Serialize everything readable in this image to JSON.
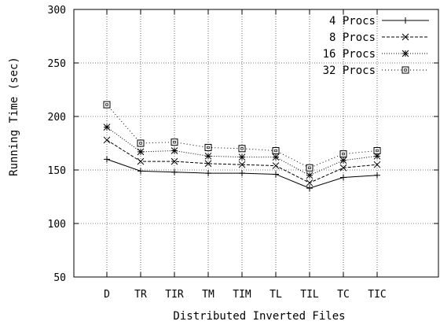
{
  "chart_data": {
    "type": "line",
    "title": "",
    "xlabel": "Distributed Inverted Files",
    "ylabel": "Running Time (sec)",
    "categories": [
      "D",
      "TR",
      "TIR",
      "TM",
      "TIM",
      "TL",
      "TIL",
      "TC",
      "TIC"
    ],
    "ylim": [
      50,
      300
    ],
    "yticks": [
      50,
      100,
      150,
      200,
      250,
      300
    ],
    "grid": true,
    "legend": "top-right",
    "series": [
      {
        "name": "4 Procs",
        "marker": "plus",
        "dash": "solid",
        "values": [
          160,
          149,
          148,
          147,
          147,
          146,
          133,
          143,
          145
        ]
      },
      {
        "name": "8 Procs",
        "marker": "cross",
        "dash": "dashed",
        "values": [
          178,
          158,
          158,
          156,
          155,
          154,
          138,
          152,
          155
        ]
      },
      {
        "name": "16 Procs",
        "marker": "star",
        "dash": "dotted",
        "values": [
          190,
          167,
          168,
          163,
          162,
          162,
          145,
          159,
          163
        ]
      },
      {
        "name": "32 Procs",
        "marker": "square",
        "dash": "sparse",
        "values": [
          211,
          175,
          176,
          171,
          170,
          168,
          152,
          165,
          168
        ]
      }
    ]
  }
}
